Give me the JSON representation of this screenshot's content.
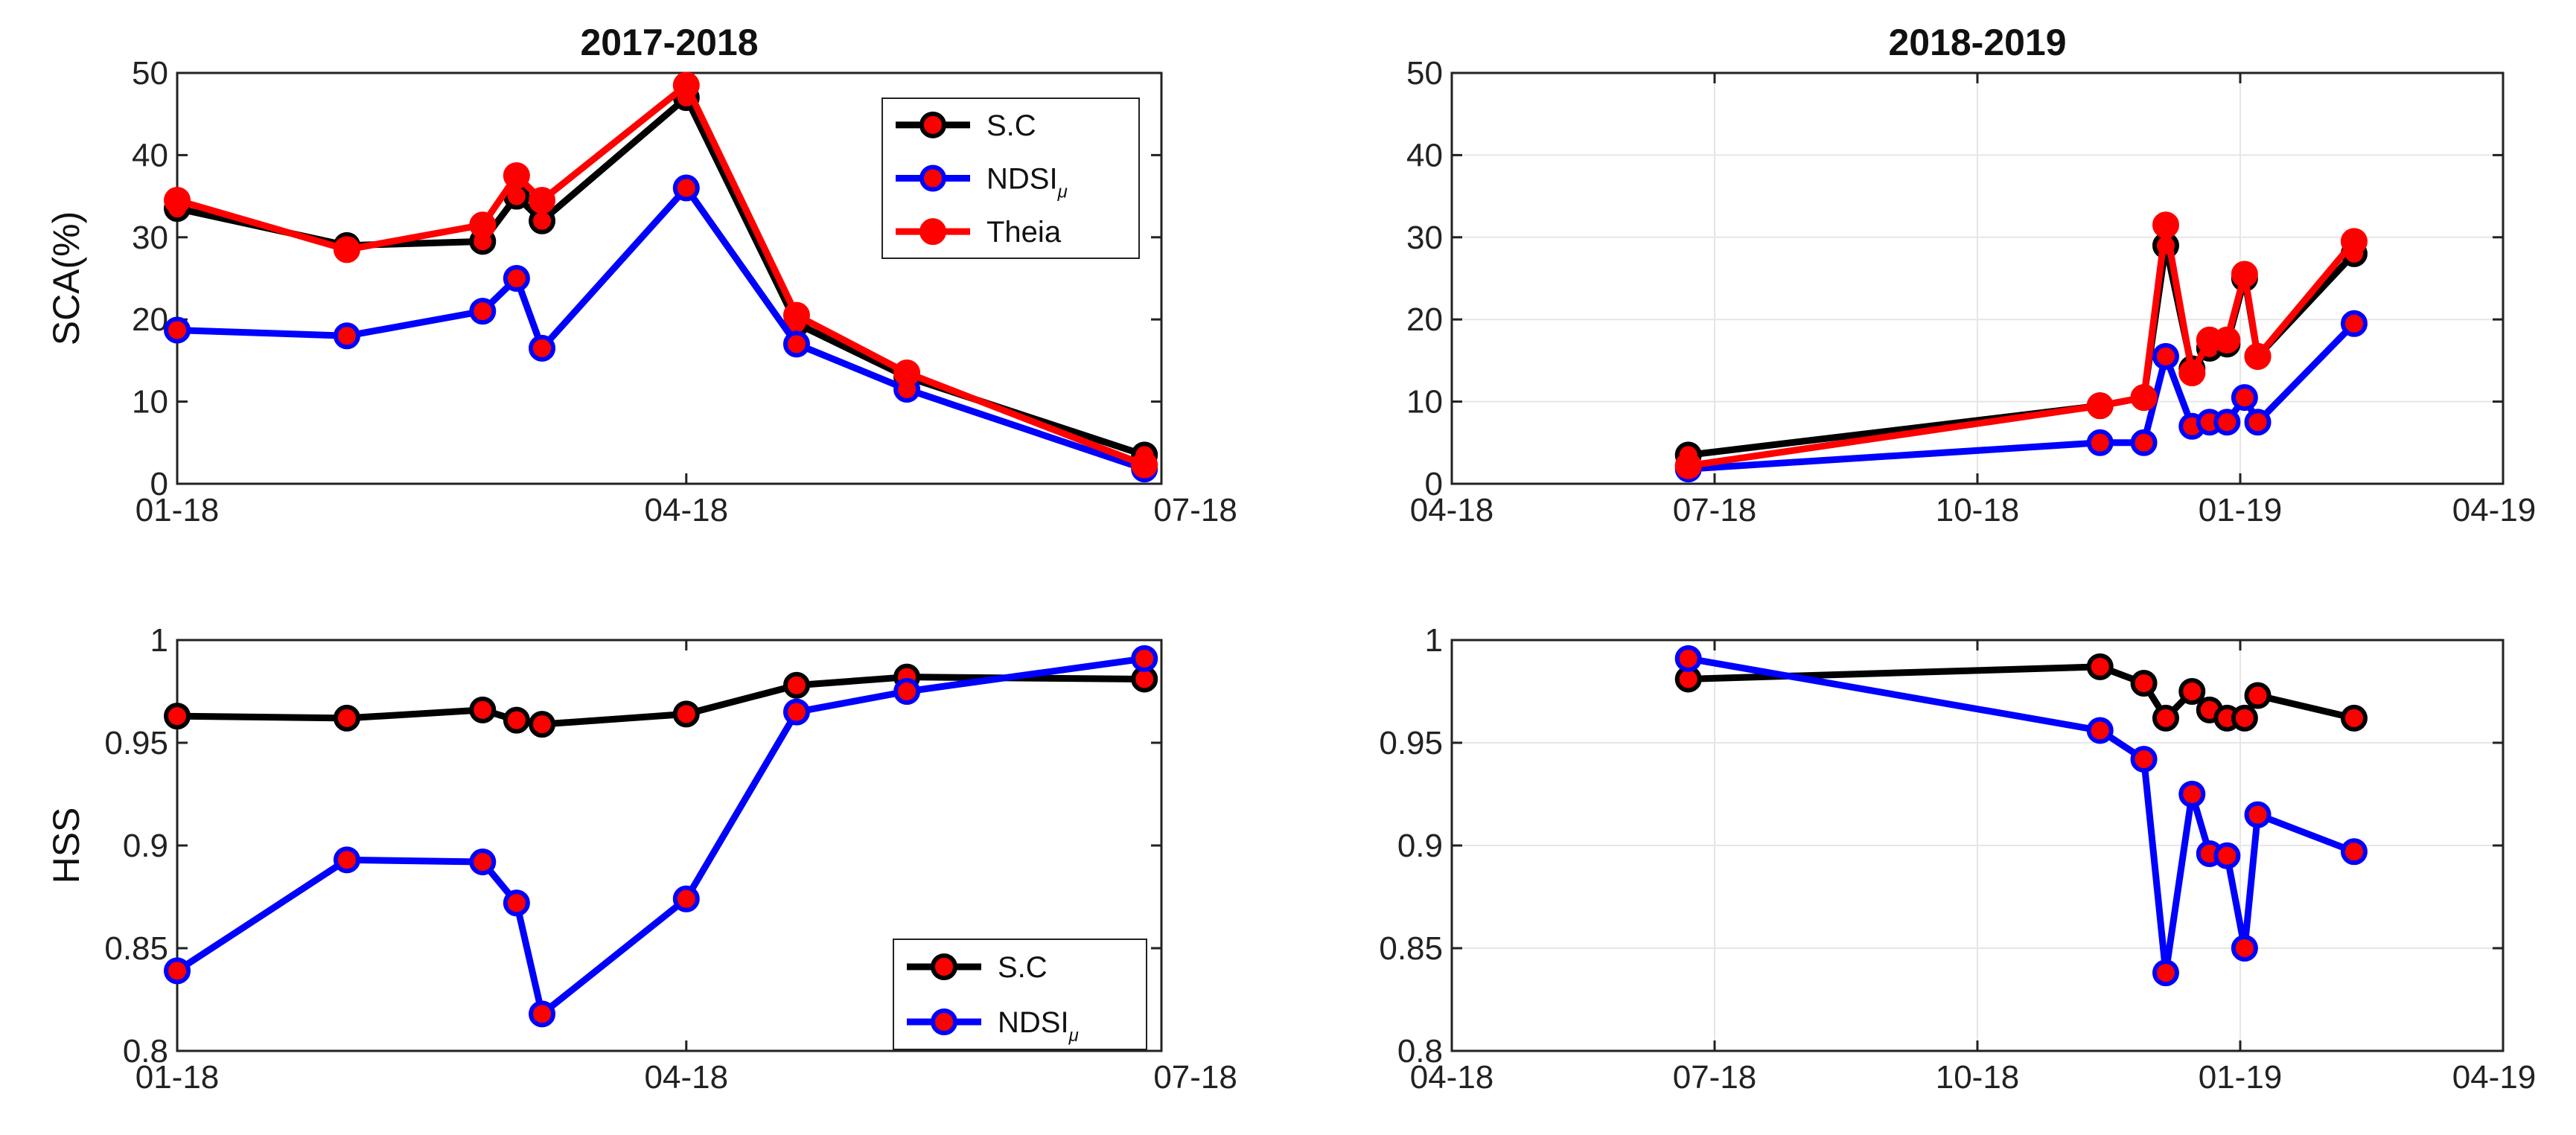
{
  "chart_data": [
    {
      "id": "p1",
      "type": "line",
      "title": "2017-2018",
      "ylabel": "SCA(%)",
      "xlabel": "",
      "grid": false,
      "ylim": [
        0,
        50
      ],
      "yticks": [
        0,
        10,
        20,
        30,
        40,
        50
      ],
      "xlim": [
        0,
        5.8
      ],
      "xticks": [
        0,
        3,
        6
      ],
      "xticklabels": [
        "01-18",
        "04-18",
        "07-18"
      ],
      "legend": {
        "position": "top-right",
        "entries": [
          {
            "label": "S.C",
            "sub": "",
            "color": "#000000"
          },
          {
            "label": "NDSI",
            "sub": "μ",
            "color": "#0000ff"
          },
          {
            "label": "Theia",
            "sub": "",
            "color": "#ff0000"
          }
        ]
      },
      "series": [
        {
          "name": "S.C",
          "color": "#000000",
          "x": [
            0,
            1,
            1.8,
            2.0,
            2.15,
            3.0,
            3.65,
            4.3,
            5.7
          ],
          "y": [
            33.5,
            29,
            29.5,
            35,
            32,
            47,
            19.5,
            13,
            3.5
          ]
        },
        {
          "name": "NDSI_μ",
          "color": "#0000ff",
          "x": [
            0,
            1,
            1.8,
            2.0,
            2.15,
            3.0,
            3.65,
            4.3,
            5.7
          ],
          "y": [
            18.7,
            18,
            21,
            25,
            16.5,
            36,
            17,
            11.5,
            1.8
          ]
        },
        {
          "name": "Theia",
          "color": "#ff0000",
          "x": [
            0,
            1,
            1.8,
            2.0,
            2.15,
            3.0,
            3.65,
            4.3,
            5.7
          ],
          "y": [
            34.5,
            28.5,
            31.5,
            37.5,
            34.5,
            48.5,
            20.5,
            13.5,
            2.3
          ]
        }
      ]
    },
    {
      "id": "p2",
      "type": "line",
      "title": "2018-2019",
      "ylabel": "",
      "xlabel": "",
      "grid": true,
      "ylim": [
        0,
        50
      ],
      "yticks": [
        0,
        10,
        20,
        30,
        40,
        50
      ],
      "xlim": [
        0,
        12
      ],
      "xticks": [
        0,
        3,
        6,
        9,
        12
      ],
      "xticklabels": [
        "04-18",
        "07-18",
        "10-18",
        "01-19",
        "04-19"
      ],
      "series": [
        {
          "name": "S.C",
          "color": "#000000",
          "x": [
            2.7,
            7.4,
            7.9,
            8.15,
            8.45,
            8.65,
            8.85,
            9.05,
            9.2,
            10.3
          ],
          "y": [
            3.5,
            9.5,
            10.5,
            29,
            14,
            16.5,
            17,
            25,
            15.5,
            28
          ]
        },
        {
          "name": "NDSI_μ",
          "color": "#0000ff",
          "x": [
            2.7,
            7.4,
            7.9,
            8.15,
            8.45,
            8.65,
            8.85,
            9.05,
            9.2,
            10.3
          ],
          "y": [
            1.8,
            5,
            5,
            15.5,
            7,
            7.5,
            7.5,
            10.5,
            7.5,
            19.5
          ]
        },
        {
          "name": "Theia",
          "color": "#ff0000",
          "x": [
            2.7,
            7.4,
            7.9,
            8.15,
            8.45,
            8.65,
            8.85,
            9.05,
            9.2,
            10.3
          ],
          "y": [
            2.2,
            9.5,
            10.5,
            31.5,
            13.5,
            17.5,
            17.5,
            25.5,
            15.5,
            29.5
          ]
        }
      ]
    },
    {
      "id": "p3",
      "type": "line",
      "title": "",
      "ylabel": "HSS",
      "xlabel": "",
      "grid": false,
      "ylim": [
        0.8,
        1.0
      ],
      "yticks": [
        0.8,
        0.85,
        0.9,
        0.95,
        1.0
      ],
      "yticklabels": [
        "0.8",
        "0.85",
        "0.9",
        "0.95",
        "1"
      ],
      "xlim": [
        0,
        5.8
      ],
      "xticks": [
        0,
        3,
        6
      ],
      "xticklabels": [
        "01-18",
        "04-18",
        "07-18"
      ],
      "legend": {
        "position": "bottom-right",
        "entries": [
          {
            "label": "S.C",
            "sub": "",
            "color": "#000000"
          },
          {
            "label": "NDSI",
            "sub": "μ",
            "color": "#0000ff"
          }
        ]
      },
      "series": [
        {
          "name": "S.C",
          "color": "#000000",
          "x": [
            0,
            1,
            1.8,
            2.0,
            2.15,
            3.0,
            3.65,
            4.3,
            5.7
          ],
          "y": [
            0.963,
            0.962,
            0.966,
            0.961,
            0.959,
            0.964,
            0.978,
            0.982,
            0.981
          ]
        },
        {
          "name": "NDSI_μ",
          "color": "#0000ff",
          "x": [
            0,
            1,
            1.8,
            2.0,
            2.15,
            3.0,
            3.65,
            4.3,
            5.7
          ],
          "y": [
            0.839,
            0.893,
            0.892,
            0.872,
            0.818,
            0.874,
            0.965,
            0.975,
            0.991
          ]
        }
      ]
    },
    {
      "id": "p4",
      "type": "line",
      "title": "",
      "ylabel": "",
      "xlabel": "",
      "grid": true,
      "ylim": [
        0.8,
        1.0
      ],
      "yticks": [
        0.8,
        0.85,
        0.9,
        0.95,
        1.0
      ],
      "yticklabels": [
        "0.8",
        "0.85",
        "0.9",
        "0.95",
        "1"
      ],
      "xlim": [
        0,
        12
      ],
      "xticks": [
        0,
        3,
        6,
        9,
        12
      ],
      "xticklabels": [
        "04-18",
        "07-18",
        "10-18",
        "01-19",
        "04-19"
      ],
      "series": [
        {
          "name": "S.C",
          "color": "#000000",
          "x": [
            2.7,
            7.4,
            7.9,
            8.15,
            8.45,
            8.65,
            8.85,
            9.05,
            9.2,
            10.3
          ],
          "y": [
            0.981,
            0.987,
            0.979,
            0.962,
            0.975,
            0.966,
            0.962,
            0.962,
            0.973,
            0.962
          ]
        },
        {
          "name": "NDSI_μ",
          "color": "#0000ff",
          "x": [
            2.7,
            7.4,
            7.9,
            8.15,
            8.45,
            8.65,
            8.85,
            9.05,
            9.2,
            10.3
          ],
          "y": [
            0.991,
            0.956,
            0.942,
            0.838,
            0.925,
            0.896,
            0.895,
            0.85,
            0.915,
            0.897
          ]
        }
      ]
    }
  ]
}
